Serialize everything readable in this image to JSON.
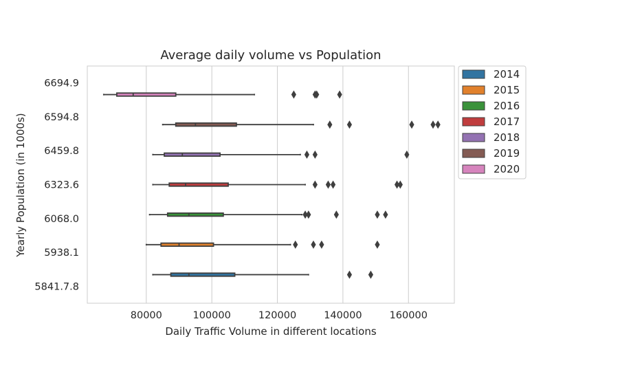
{
  "chart_data": {
    "type": "boxplot-horizontal",
    "title": "Average daily volume vs Population",
    "xlabel": "Daily Traffic Volume in different locations",
    "ylabel": "Yearly Population (in 1000s)",
    "xlim": [
      62000,
      174000
    ],
    "xticks": [
      80000,
      100000,
      120000,
      140000,
      160000
    ],
    "grid": true,
    "legend_position": "outside-right",
    "categories": [
      "6694.9",
      "6594.8",
      "6459.8",
      "6323.6",
      "6068.0",
      "5938.1",
      "5841.7.8"
    ],
    "series": [
      {
        "name": "2014",
        "color": "#3274a1",
        "category": "5841.7.8",
        "whislo": 82000,
        "q1": 87500,
        "median": 93000,
        "q3": 107000,
        "whishi": 129500,
        "fliers": [
          142000,
          148500
        ]
      },
      {
        "name": "2015",
        "color": "#e1812c",
        "category": "5938.1",
        "whislo": 80000,
        "q1": 84500,
        "median": 90000,
        "q3": 100500,
        "whishi": 124000,
        "fliers": [
          125500,
          131000,
          133500,
          150500
        ]
      },
      {
        "name": "2016",
        "color": "#3a923a",
        "category": "6068.0",
        "whislo": 81000,
        "q1": 86500,
        "median": 93000,
        "q3": 103500,
        "whishi": 127500,
        "fliers": [
          128500,
          129500,
          138000,
          150500,
          153000
        ]
      },
      {
        "name": "2017",
        "color": "#c03d3e",
        "category": "6323.6",
        "whislo": 82000,
        "q1": 87000,
        "median": 92000,
        "q3": 105000,
        "whishi": 128500,
        "fliers": [
          131500,
          135500,
          137000,
          156500,
          157500
        ]
      },
      {
        "name": "2018",
        "color": "#9372b2",
        "category": "6459.8",
        "whislo": 82000,
        "q1": 85500,
        "median": 91000,
        "q3": 102500,
        "whishi": 127000,
        "fliers": [
          129000,
          131500,
          159500
        ]
      },
      {
        "name": "2019",
        "color": "#845b53",
        "category": "6594.8",
        "whislo": 85000,
        "q1": 89000,
        "median": 95000,
        "q3": 107500,
        "whishi": 131000,
        "fliers": [
          136000,
          142000,
          161000,
          167500,
          169000
        ]
      },
      {
        "name": "2020",
        "color": "#d684bd",
        "category": "6694.9",
        "whislo": 67000,
        "q1": 71000,
        "median": 76000,
        "q3": 89000,
        "whishi": 113000,
        "fliers": [
          125000,
          131500,
          132000,
          139000
        ]
      }
    ]
  }
}
